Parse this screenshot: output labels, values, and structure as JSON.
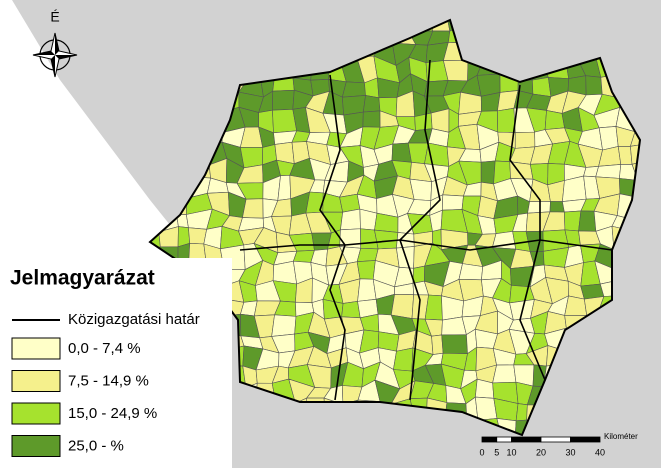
{
  "map": {
    "north_label": "É",
    "legend": {
      "title": "Jelmagyarázat",
      "boundary_label": "Közigazgatási határ",
      "classes": [
        {
          "label": "0,0 - 7,4 %",
          "color": "#ffffc8"
        },
        {
          "label": "7,5 - 14,9 %",
          "color": "#f5f08c"
        },
        {
          "label": "15,0 - 24,9 %",
          "color": "#a6e22e"
        },
        {
          "label": "25,0 - %",
          "color": "#5e9a2a"
        }
      ]
    },
    "scale_bar": {
      "ticks": [
        0,
        5,
        10,
        20,
        30,
        40
      ],
      "unit": "Kilométer"
    }
  }
}
